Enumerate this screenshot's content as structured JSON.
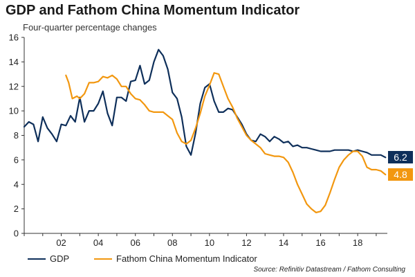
{
  "title": "GDP and Fathom China Momentum Indicator",
  "subtitle": "Four-quarter percentage changes",
  "source": "Source: Refinitiv Datastream / Fathom Consulting",
  "colors": {
    "gdp": "#0e2f5a",
    "fathom": "#f2970f"
  },
  "chart_data": {
    "type": "line",
    "title": "GDP and Fathom China Momentum Indicator",
    "subtitle": "Four-quarter percentage changes",
    "xlabel": "",
    "ylabel": "",
    "xlim": [
      2000,
      2019.6
    ],
    "ylim": [
      0,
      16
    ],
    "yticks": [
      0,
      2,
      4,
      6,
      8,
      10,
      12,
      14,
      16
    ],
    "xticks": [
      {
        "value": 2002,
        "label": "02"
      },
      {
        "value": 2004,
        "label": "04"
      },
      {
        "value": 2006,
        "label": "06"
      },
      {
        "value": 2008,
        "label": "08"
      },
      {
        "value": 2010,
        "label": "10"
      },
      {
        "value": 2012,
        "label": "12"
      },
      {
        "value": 2014,
        "label": "14"
      },
      {
        "value": 2016,
        "label": "16"
      },
      {
        "value": 2018,
        "label": "18"
      }
    ],
    "grid": false,
    "legend": "bottom",
    "end_labels": [
      {
        "series": "GDP",
        "text": "6.2",
        "value": 6.2
      },
      {
        "series": "Fathom China Momentum Indicator",
        "text": "4.8",
        "value": 4.8
      }
    ],
    "series": [
      {
        "name": "GDP",
        "x": [
          2000.0,
          2000.25,
          2000.5,
          2000.75,
          2001.0,
          2001.25,
          2001.5,
          2001.75,
          2002.0,
          2002.25,
          2002.5,
          2002.75,
          2003.0,
          2003.25,
          2003.5,
          2003.75,
          2004.0,
          2004.25,
          2004.5,
          2004.75,
          2005.0,
          2005.25,
          2005.5,
          2005.75,
          2006.0,
          2006.25,
          2006.5,
          2006.75,
          2007.0,
          2007.25,
          2007.5,
          2007.75,
          2008.0,
          2008.25,
          2008.5,
          2008.75,
          2009.0,
          2009.25,
          2009.5,
          2009.75,
          2010.0,
          2010.25,
          2010.5,
          2010.75,
          2011.0,
          2011.25,
          2011.5,
          2011.75,
          2012.0,
          2012.25,
          2012.5,
          2012.75,
          2013.0,
          2013.25,
          2013.5,
          2013.75,
          2014.0,
          2014.25,
          2014.5,
          2014.75,
          2015.0,
          2015.25,
          2015.5,
          2015.75,
          2016.0,
          2016.25,
          2016.5,
          2016.75,
          2017.0,
          2017.25,
          2017.5,
          2017.75,
          2018.0,
          2018.25,
          2018.5,
          2018.75,
          2019.0,
          2019.25,
          2019.5
        ],
        "values": [
          8.7,
          9.1,
          8.9,
          7.5,
          9.5,
          8.6,
          8.1,
          7.5,
          8.9,
          8.8,
          9.6,
          9.1,
          11.1,
          9.1,
          10.0,
          10.0,
          10.6,
          11.6,
          9.8,
          8.8,
          11.1,
          11.1,
          10.8,
          12.4,
          12.5,
          13.7,
          12.2,
          12.5,
          14.0,
          15.0,
          14.5,
          13.4,
          11.5,
          11.0,
          9.5,
          7.1,
          6.4,
          8.2,
          10.6,
          11.9,
          12.2,
          10.8,
          9.9,
          9.9,
          10.2,
          10.1,
          9.5,
          8.9,
          8.1,
          7.6,
          7.5,
          8.1,
          7.9,
          7.5,
          7.9,
          7.7,
          7.4,
          7.5,
          7.1,
          7.2,
          7.0,
          7.0,
          6.9,
          6.8,
          6.7,
          6.7,
          6.7,
          6.8,
          6.8,
          6.8,
          6.8,
          6.7,
          6.8,
          6.7,
          6.6,
          6.4,
          6.4,
          6.4,
          6.2
        ]
      },
      {
        "name": "Fathom China Momentum Indicator",
        "x": [
          2002.25,
          2002.4,
          2002.6,
          2002.85,
          2003.0,
          2003.25,
          2003.5,
          2003.75,
          2004.0,
          2004.25,
          2004.5,
          2004.75,
          2005.0,
          2005.25,
          2005.5,
          2005.75,
          2006.0,
          2006.25,
          2006.5,
          2006.75,
          2007.0,
          2007.25,
          2007.5,
          2007.75,
          2008.0,
          2008.25,
          2008.5,
          2008.75,
          2009.0,
          2009.25,
          2009.5,
          2009.75,
          2010.0,
          2010.25,
          2010.5,
          2010.75,
          2011.0,
          2011.25,
          2011.5,
          2011.75,
          2012.0,
          2012.25,
          2012.5,
          2012.75,
          2013.0,
          2013.25,
          2013.5,
          2013.75,
          2014.0,
          2014.25,
          2014.5,
          2014.75,
          2015.0,
          2015.25,
          2015.5,
          2015.75,
          2016.0,
          2016.25,
          2016.5,
          2016.75,
          2017.0,
          2017.25,
          2017.5,
          2017.75,
          2018.0,
          2018.25,
          2018.5,
          2018.75,
          2019.0,
          2019.25,
          2019.5
        ],
        "values": [
          12.9,
          12.3,
          11.0,
          11.2,
          11.0,
          11.4,
          12.3,
          12.3,
          12.4,
          12.8,
          12.7,
          12.9,
          12.6,
          12.0,
          12.0,
          11.4,
          11.0,
          10.9,
          10.5,
          10.0,
          9.9,
          9.9,
          9.9,
          9.6,
          9.3,
          8.2,
          7.5,
          7.3,
          7.6,
          8.6,
          9.8,
          11.2,
          12.1,
          13.1,
          13.0,
          12.0,
          11.0,
          10.3,
          9.4,
          8.7,
          8.0,
          7.6,
          7.3,
          7.0,
          6.5,
          6.4,
          6.3,
          6.3,
          6.2,
          5.8,
          5.0,
          4.0,
          3.2,
          2.4,
          2.0,
          1.7,
          1.8,
          2.3,
          3.3,
          4.4,
          5.4,
          6.0,
          6.4,
          6.7,
          6.7,
          6.3,
          5.4,
          5.2,
          5.2,
          5.1,
          4.8
        ]
      }
    ]
  }
}
